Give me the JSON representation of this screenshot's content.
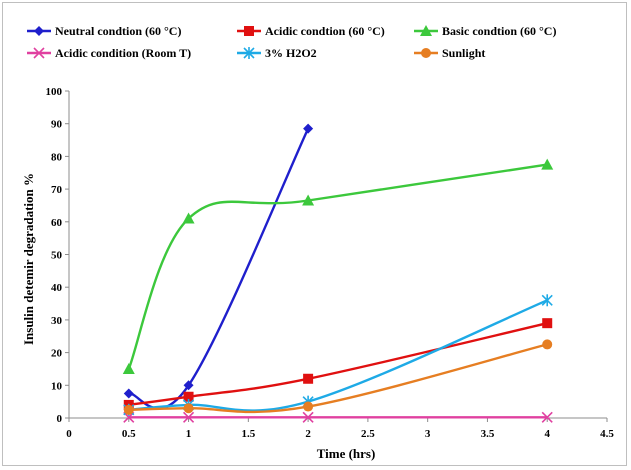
{
  "chart_data": {
    "type": "line",
    "title": "",
    "xlabel": "Time (hrs)",
    "ylabel": "Insulin detemir degradation %",
    "xlim": [
      0,
      4.5
    ],
    "ylim": [
      0,
      100
    ],
    "xticks": [
      "0",
      "0.5",
      "1",
      "1.5",
      "2",
      "2.5",
      "3",
      "3.5",
      "4",
      "4.5"
    ],
    "yticks": [
      "0",
      "10",
      "20",
      "30",
      "40",
      "50",
      "60",
      "70",
      "80",
      "90",
      "100"
    ],
    "grid": false,
    "legend_position": "top",
    "series": [
      {
        "name": "Neutral condtion (60 °C)",
        "color": "#1f1fcc",
        "marker": "diamond",
        "x": [
          0.5,
          1,
          2
        ],
        "y": [
          7.5,
          10,
          88.5
        ]
      },
      {
        "name": "Acidic condtion (60 °C)",
        "color": "#e01010",
        "marker": "square",
        "x": [
          0.5,
          1,
          2,
          4
        ],
        "y": [
          4,
          6.5,
          12,
          29
        ]
      },
      {
        "name": "Basic condtion (60 °C)",
        "color": "#3cc83c",
        "marker": "triangle",
        "x": [
          0.5,
          1,
          2,
          4
        ],
        "y": [
          15,
          61,
          66.5,
          77.5
        ]
      },
      {
        "name": "Acidic condition (Room T)",
        "color": "#e040a0",
        "marker": "x",
        "x": [
          0.5,
          1,
          2,
          4
        ],
        "y": [
          0.2,
          0.2,
          0.2,
          0.2
        ]
      },
      {
        "name": "3% H2O2",
        "color": "#1eaae6",
        "marker": "asterisk",
        "x": [
          0.5,
          1,
          2,
          4
        ],
        "y": [
          2.5,
          4,
          5,
          36
        ]
      },
      {
        "name": "Sunlight",
        "color": "#e67e22",
        "marker": "circle",
        "x": [
          0.5,
          1,
          2,
          4
        ],
        "y": [
          2.5,
          3,
          3.5,
          22.5
        ]
      }
    ]
  }
}
